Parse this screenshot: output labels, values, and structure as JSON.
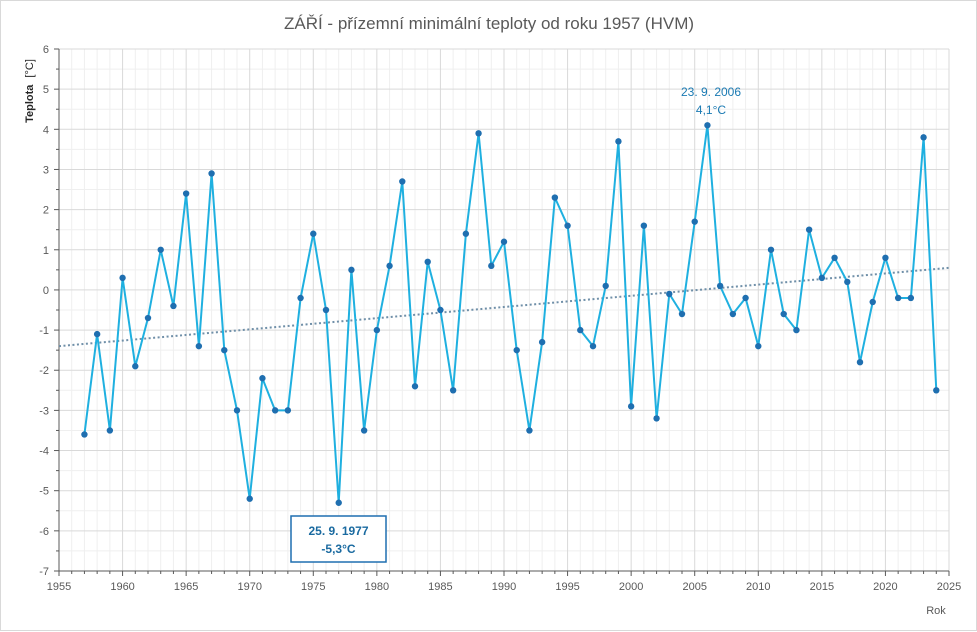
{
  "chart_data": {
    "type": "line",
    "title": "ZÁŘÍ - přízemní minimální teploty od roku 1957 (HVM)",
    "ylabel": "Teplota",
    "ylabel_unit": "[°C]",
    "xlabel": "Rok",
    "xlim": [
      1955,
      2025
    ],
    "ylim": [
      -7,
      6
    ],
    "x_ticks": [
      "1955",
      "1960",
      "1965",
      "1970",
      "1975",
      "1980",
      "1985",
      "1990",
      "1995",
      "2000",
      "2005",
      "2010",
      "2015",
      "2020",
      "2025"
    ],
    "y_ticks": [
      "6",
      "5",
      "4",
      "3",
      "2",
      "1",
      "0",
      "-1",
      "-2",
      "-3",
      "-4",
      "-5",
      "-6",
      "-7"
    ],
    "grid": true,
    "series_color": "#1fb0e0",
    "marker_color": "#1f6fb0",
    "trendline": {
      "style": "dotted",
      "color": "#6f8fa8",
      "start": [
        1955,
        -1.4
      ],
      "end": [
        2025,
        0.55
      ]
    },
    "series": [
      {
        "x": [
          1957,
          1958,
          1959,
          1960,
          1961,
          1962,
          1963,
          1964,
          1965,
          1966,
          1967,
          1968,
          1969,
          1970,
          1971,
          1972,
          1973,
          1974,
          1975,
          1976,
          1977,
          1978,
          1979,
          1980,
          1981,
          1982,
          1983,
          1984,
          1985,
          1986,
          1987,
          1988,
          1989,
          1990,
          1991,
          1992,
          1993,
          1994,
          1995,
          1996,
          1997,
          1998,
          1999,
          2000,
          2001,
          2002,
          2003,
          2004,
          2005,
          2006,
          2007,
          2008,
          2009,
          2010,
          2011,
          2012,
          2013,
          2014,
          2015,
          2016,
          2017,
          2018,
          2019,
          2020,
          2021,
          2022,
          2023,
          2024
        ],
        "values": [
          -3.6,
          -1.1,
          -3.5,
          0.3,
          -1.9,
          -0.7,
          1.0,
          -0.4,
          2.4,
          -1.4,
          2.9,
          -1.5,
          -3.0,
          -5.2,
          -2.2,
          -3.0,
          -3.0,
          -0.2,
          1.4,
          -0.5,
          -5.3,
          0.5,
          -3.5,
          -1.0,
          0.6,
          2.7,
          -2.4,
          0.7,
          -0.5,
          -2.5,
          1.4,
          3.9,
          0.6,
          1.2,
          -1.5,
          -3.5,
          -1.3,
          2.3,
          1.6,
          -1.0,
          -1.4,
          0.1,
          3.7,
          -2.9,
          1.6,
          -3.2,
          -0.1,
          -0.6,
          1.7,
          4.1,
          0.1,
          -0.6,
          -0.2,
          -1.4,
          1.0,
          -0.6,
          -1.0,
          1.5,
          0.3,
          0.8,
          0.2,
          -1.8,
          -0.3,
          0.8,
          -0.2,
          -0.2,
          3.8,
          -2.5
        ]
      }
    ],
    "annotations": [
      {
        "line1": "23. 9. 2006",
        "line2": "4,1°C",
        "boxed": false
      },
      {
        "line1": "25. 9. 1977",
        "line2": "-5,3°C",
        "boxed": true
      }
    ]
  }
}
